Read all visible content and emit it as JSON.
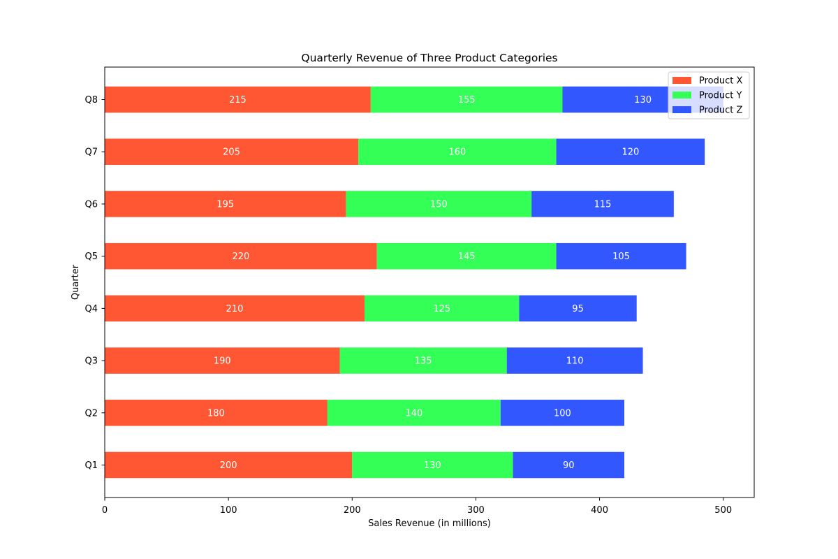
{
  "chart_data": {
    "type": "bar",
    "orientation": "horizontal",
    "stacked": true,
    "title": "Quarterly Revenue of Three Product Categories",
    "xlabel": "Sales Revenue (in millions)",
    "ylabel": "Quarter",
    "categories": [
      "Q1",
      "Q2",
      "Q3",
      "Q4",
      "Q5",
      "Q6",
      "Q7",
      "Q8"
    ],
    "series": [
      {
        "name": "Product X",
        "color": "#ff5733",
        "values": [
          200,
          180,
          190,
          210,
          220,
          195,
          205,
          215
        ]
      },
      {
        "name": "Product Y",
        "color": "#33ff57",
        "values": [
          130,
          140,
          135,
          125,
          145,
          150,
          160,
          155
        ]
      },
      {
        "name": "Product Z",
        "color": "#3357ff",
        "values": [
          90,
          100,
          110,
          95,
          105,
          115,
          120,
          130
        ]
      }
    ],
    "xlim": [
      0,
      525
    ],
    "xticks": [
      0,
      100,
      200,
      300,
      400,
      500
    ],
    "xtick_labels": [
      "0",
      "100",
      "200",
      "300",
      "400",
      "500"
    ],
    "grid": false,
    "legend_position": "top-right",
    "data_labels": true
  }
}
